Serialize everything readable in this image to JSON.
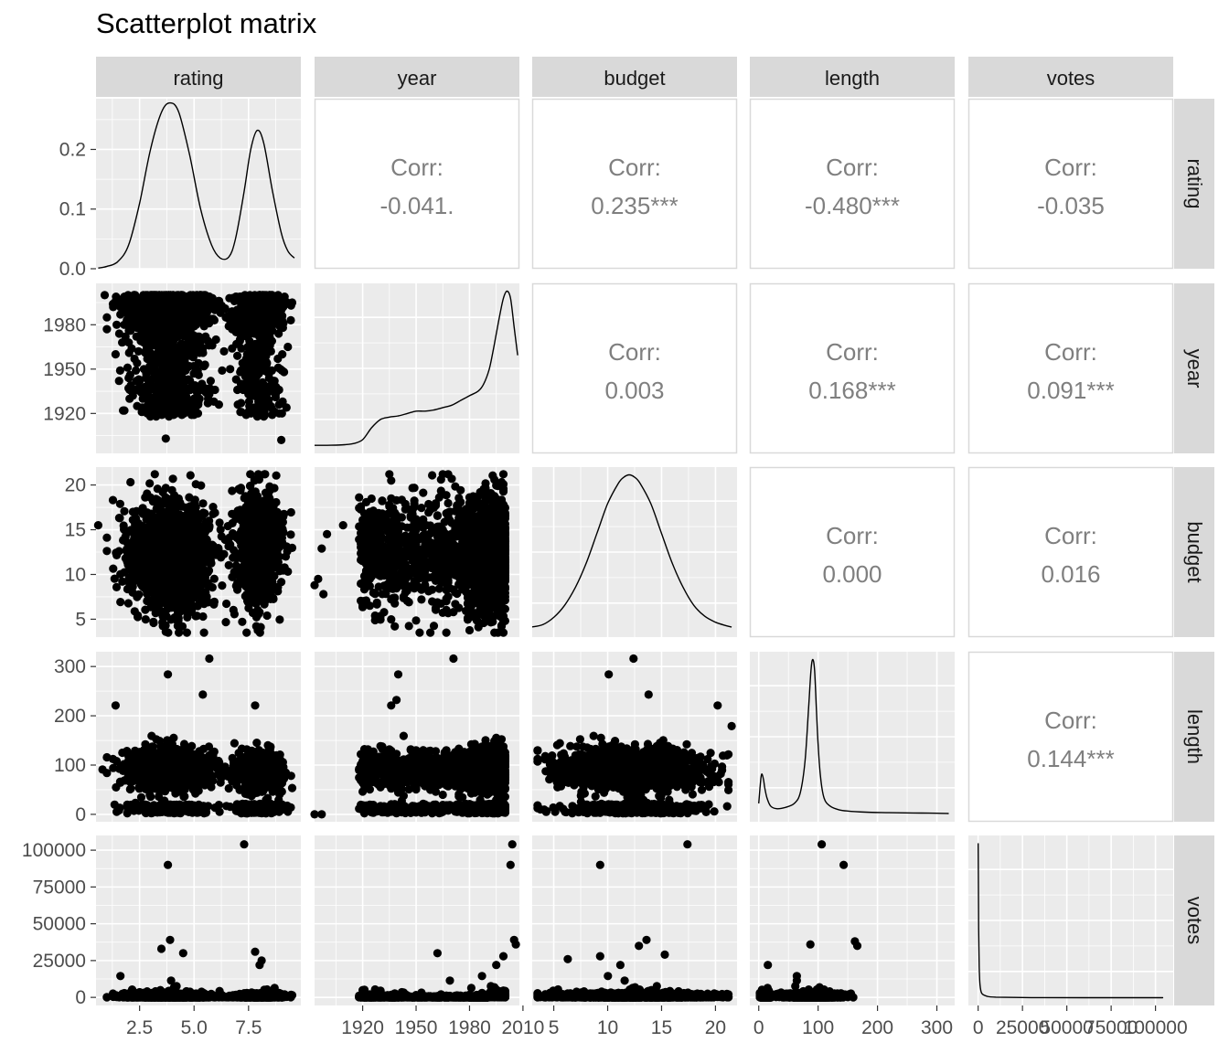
{
  "title": "Scatterplot matrix",
  "variables": [
    "rating",
    "year",
    "budget",
    "length",
    "votes"
  ],
  "corr_label": "Corr:",
  "colors": {
    "panel_bg": "#ebebeb",
    "grid": "#ffffff",
    "strip_bg": "#d9d9d9",
    "point": "#000000",
    "corr_text": "#7f7f7f",
    "axis_text": "#4d4d4d"
  },
  "chart_data": {
    "type": "scatter",
    "layout": "scatterplot-matrix",
    "title": "Scatterplot matrix",
    "variables": [
      "rating",
      "year",
      "budget",
      "length",
      "votes"
    ],
    "ranges": {
      "rating": [
        0.5,
        9.9
      ],
      "year": [
        1893,
        2008
      ],
      "budget": [
        3,
        22
      ],
      "length": [
        -15,
        330
      ],
      "votes": [
        -5500,
        110000
      ]
    },
    "ticks": {
      "rating": {
        "values": [
          2.5,
          5.0,
          7.5
        ],
        "labels": [
          "2.5",
          "5.0",
          "7.5"
        ]
      },
      "year": {
        "values": [
          1920,
          1950,
          1980,
          2010
        ],
        "labels": [
          "1920",
          "1950",
          "1980",
          "2010"
        ]
      },
      "budget": {
        "values": [
          5,
          10,
          15,
          20
        ],
        "labels": [
          "5",
          "10",
          "15",
          "20"
        ]
      },
      "length": {
        "values": [
          0,
          100,
          200,
          300
        ],
        "labels": [
          "0",
          "100",
          "200",
          "300"
        ]
      },
      "votes": {
        "values": [
          0,
          25000,
          50000,
          75000,
          100000
        ],
        "labels": [
          "0",
          "25000",
          "50000",
          "75000",
          "100000"
        ]
      }
    },
    "density_axis": {
      "ylim": [
        0,
        0.285
      ],
      "ticks": [
        0.0,
        0.1,
        0.2
      ],
      "labels": [
        "0.0",
        "0.1",
        "0.2"
      ]
    },
    "correlations": [
      {
        "row": "rating",
        "col": "year",
        "value": "-0.041."
      },
      {
        "row": "rating",
        "col": "budget",
        "value": "0.235***"
      },
      {
        "row": "rating",
        "col": "length",
        "value": "-0.480***"
      },
      {
        "row": "rating",
        "col": "votes",
        "value": "-0.035"
      },
      {
        "row": "year",
        "col": "budget",
        "value": "0.003"
      },
      {
        "row": "year",
        "col": "length",
        "value": "0.168***"
      },
      {
        "row": "year",
        "col": "votes",
        "value": "0.091***"
      },
      {
        "row": "budget",
        "col": "length",
        "value": "0.000"
      },
      {
        "row": "budget",
        "col": "votes",
        "value": "0.016"
      },
      {
        "row": "length",
        "col": "votes",
        "value": "0.144***"
      }
    ],
    "densities": {
      "rating": {
        "x": [
          0.6,
          1,
          1.5,
          2,
          2.5,
          3,
          3.5,
          3.9,
          4.3,
          4.8,
          5.3,
          5.8,
          6.2,
          6.6,
          6.9,
          7.3,
          7.6,
          7.9,
          8.2,
          8.6,
          9,
          9.3,
          9.6
        ],
        "y": [
          0.001,
          0.004,
          0.012,
          0.04,
          0.11,
          0.2,
          0.262,
          0.278,
          0.262,
          0.19,
          0.1,
          0.04,
          0.018,
          0.02,
          0.05,
          0.13,
          0.2,
          0.232,
          0.21,
          0.13,
          0.06,
          0.03,
          0.018
        ]
      },
      "year": {
        "x": [
          1893,
          1900,
          1905,
          1910,
          1915,
          1920,
          1925,
          1930,
          1935,
          1940,
          1945,
          1950,
          1955,
          1960,
          1965,
          1970,
          1975,
          1980,
          1985,
          1988,
          1991,
          1993,
          1995,
          1997,
          1999,
          2001,
          2003,
          2005,
          2007
        ],
        "y": [
          0.0003,
          0.0003,
          0.0004,
          0.0008,
          0.0018,
          0.005,
          0.015,
          0.022,
          0.024,
          0.025,
          0.027,
          0.029,
          0.029,
          0.03,
          0.032,
          0.034,
          0.038,
          0.042,
          0.046,
          0.052,
          0.064,
          0.078,
          0.094,
          0.11,
          0.124,
          0.13,
          0.124,
          0.1,
          0.076
        ]
      },
      "budget": {
        "x": [
          3,
          4,
          5,
          6,
          7,
          8,
          9,
          10,
          11,
          11.5,
          12,
          12.5,
          13,
          14,
          15,
          16,
          17,
          18,
          19,
          20,
          21,
          21.5
        ],
        "y": [
          0.002,
          0.004,
          0.01,
          0.02,
          0.035,
          0.055,
          0.08,
          0.105,
          0.122,
          0.127,
          0.129,
          0.127,
          0.122,
          0.105,
          0.08,
          0.055,
          0.035,
          0.02,
          0.011,
          0.006,
          0.003,
          0.002
        ]
      },
      "length": {
        "x": [
          0,
          3,
          5,
          8,
          10,
          14,
          20,
          30,
          45,
          60,
          70,
          78,
          84,
          88,
          91,
          94,
          97,
          100,
          104,
          110,
          120,
          135,
          150,
          180,
          220,
          260,
          300,
          320
        ],
        "y": [
          0.004,
          0.012,
          0.015,
          0.013,
          0.01,
          0.006,
          0.003,
          0.002,
          0.0025,
          0.004,
          0.008,
          0.02,
          0.04,
          0.054,
          0.058,
          0.054,
          0.04,
          0.026,
          0.014,
          0.006,
          0.003,
          0.0016,
          0.0011,
          0.0007,
          0.0005,
          0.0004,
          0.0003,
          0.0002
        ]
      },
      "votes": {
        "x": [
          0,
          100,
          300,
          600,
          1000,
          2000,
          5000,
          10000,
          30000,
          60000,
          100000,
          103000
        ],
        "y": [
          1.0,
          0.8,
          0.45,
          0.2,
          0.09,
          0.03,
          0.01,
          0.004,
          0.001,
          0.0005,
          0.0003,
          0.0002
        ]
      }
    },
    "notable_points": {
      "rating_year": [
        [
          0.9,
          2000
        ],
        [
          3.7,
          1903
        ],
        [
          9.0,
          1902
        ],
        [
          1.7,
          1968
        ],
        [
          1.4,
          1960
        ],
        [
          8.9,
          1926
        ],
        [
          8.2,
          1918
        ]
      ],
      "rating_budget": [
        [
          0.6,
          15.5
        ],
        [
          3.7,
          3.6
        ],
        [
          8.0,
          3.8
        ],
        [
          3.2,
          21.2
        ],
        [
          8.0,
          21.0
        ]
      ],
      "rating_length": [
        [
          0.8,
          91
        ],
        [
          5.7,
          316
        ],
        [
          5.4,
          243
        ],
        [
          3.8,
          284
        ],
        [
          7.8,
          221
        ],
        [
          1.4,
          221
        ]
      ],
      "rating_votes": [
        [
          7.3,
          104000
        ],
        [
          3.8,
          90000
        ],
        [
          3.9,
          39000
        ],
        [
          7.8,
          31000
        ],
        [
          8.1,
          25000
        ],
        [
          3.5,
          33000
        ],
        [
          4.5,
          30000
        ]
      ],
      "year_votes": [
        [
          2004,
          104000
        ],
        [
          2003,
          90000
        ],
        [
          2005,
          39000
        ],
        [
          2006,
          36000
        ],
        [
          1962,
          30000
        ],
        [
          1999,
          28000
        ]
      ],
      "budget_votes": [
        [
          17.4,
          104000
        ],
        [
          9.3,
          90000
        ],
        [
          13.6,
          39000
        ],
        [
          12.9,
          35000
        ],
        [
          15.3,
          29000
        ],
        [
          9.3,
          28000
        ],
        [
          6.3,
          26000
        ]
      ],
      "length_votes": [
        [
          106,
          104000
        ],
        [
          143,
          90000
        ],
        [
          162,
          38000
        ],
        [
          166,
          35000
        ],
        [
          87,
          36000
        ]
      ],
      "year_length": [
        [
          1971,
          316
        ],
        [
          1940,
          284
        ],
        [
          1939,
          232
        ],
        [
          1936,
          221
        ],
        [
          1893,
          0
        ],
        [
          1897,
          0
        ]
      ],
      "budget_length": [
        [
          12.4,
          316
        ],
        [
          10.1,
          284
        ],
        [
          13.8,
          243
        ],
        [
          20.2,
          221
        ],
        [
          21.5,
          179
        ],
        [
          4.3,
          5
        ]
      ],
      "year_budget": [
        [
          1893,
          8.8
        ],
        [
          1895,
          9.5
        ],
        [
          1900,
          14.5
        ],
        [
          1897,
          12.9
        ],
        [
          1898,
          7.8
        ],
        [
          1909,
          15.5
        ]
      ]
    }
  }
}
